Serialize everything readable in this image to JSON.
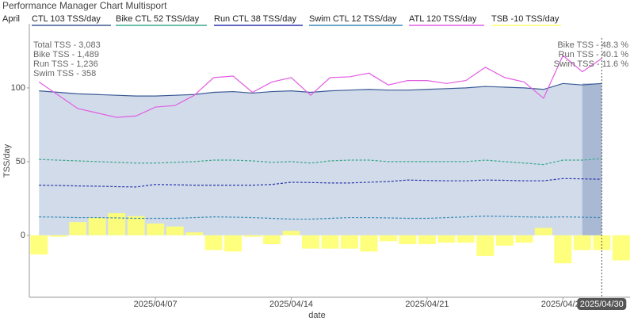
{
  "chart_data": {
    "type": "line",
    "title": "Performance Manager Chart Multisport",
    "legend_title": "April",
    "x_label": "date",
    "y_label": "TSS/day",
    "x": [
      "2025-04-01",
      "2025-04-02",
      "2025-04-03",
      "2025-04-04",
      "2025-04-05",
      "2025-04-06",
      "2025-04-07",
      "2025-04-08",
      "2025-04-09",
      "2025-04-10",
      "2025-04-11",
      "2025-04-12",
      "2025-04-13",
      "2025-04-14",
      "2025-04-15",
      "2025-04-16",
      "2025-04-17",
      "2025-04-18",
      "2025-04-19",
      "2025-04-20",
      "2025-04-21",
      "2025-04-22",
      "2025-04-23",
      "2025-04-24",
      "2025-04-25",
      "2025-04-26",
      "2025-04-27",
      "2025-04-28",
      "2025-04-29",
      "2025-04-30"
    ],
    "series": [
      {
        "name": "CTL  103 TSS/day",
        "color": "#3b5a96",
        "fill": "#d1dbe9",
        "dash": false,
        "values": [
          98,
          97,
          96,
          95.5,
          95,
          94.5,
          94.5,
          95,
          95.5,
          97,
          97.5,
          96.5,
          97.5,
          98,
          97,
          98,
          98.5,
          99,
          98.5,
          98.5,
          99,
          99.5,
          100,
          101,
          100.5,
          100,
          99,
          103,
          102,
          103
        ]
      },
      {
        "name": "Bike CTL  52 TSS/day",
        "color": "#3aa88c",
        "dash": true,
        "values": [
          51.5,
          51,
          50.5,
          50,
          49.5,
          49,
          49,
          49.5,
          50,
          51,
          51,
          50.5,
          49.5,
          50,
          49,
          50.5,
          51,
          51,
          50,
          50,
          50,
          50,
          50,
          51,
          50,
          49,
          48,
          51,
          51,
          52
        ]
      },
      {
        "name": "Run CTL  38 TSS/day",
        "color": "#2b37ae",
        "dash": true,
        "values": [
          34,
          33.8,
          33.5,
          33.3,
          33,
          32.8,
          34.5,
          34.3,
          34,
          34,
          34,
          34,
          34.5,
          36,
          35.8,
          35.5,
          35.5,
          36,
          36.5,
          37.5,
          37.2,
          37,
          37,
          37.5,
          37.3,
          37,
          37,
          38.5,
          38.3,
          38
        ]
      },
      {
        "name": "Swim CTL  12 TSS/day",
        "color": "#3a8ab8",
        "dash": true,
        "values": [
          12.5,
          12.3,
          12,
          12,
          11.8,
          11.5,
          11.5,
          11.5,
          12,
          12.5,
          12.3,
          12,
          11.5,
          11,
          11,
          11.5,
          12,
          12,
          11.8,
          11.5,
          11.5,
          12,
          12.5,
          13,
          12.8,
          12.5,
          12.3,
          12.5,
          12.3,
          12
        ]
      },
      {
        "name": "ATL  120 TSS/day",
        "color": "#e35de3",
        "dash": false,
        "values": [
          104,
          95,
          86,
          83,
          80,
          81,
          87,
          88,
          95,
          107,
          108,
          97,
          104,
          107,
          95,
          107,
          107.5,
          110,
          102,
          105,
          105,
          103,
          105,
          114,
          107,
          104,
          93,
          122,
          111,
          120
        ]
      },
      {
        "name": "TSB  -10 TSS/day",
        "color": "#ffff70",
        "type": "bar",
        "x": [
          "2025-04-01",
          "2025-04-02",
          "2025-04-03",
          "2025-04-04",
          "2025-04-05",
          "2025-04-06",
          "2025-04-07",
          "2025-04-08",
          "2025-04-09",
          "2025-04-10",
          "2025-04-11",
          "2025-04-12",
          "2025-04-13",
          "2025-04-14",
          "2025-04-15",
          "2025-04-16",
          "2025-04-17",
          "2025-04-18",
          "2025-04-19",
          "2025-04-20",
          "2025-04-21",
          "2025-04-22",
          "2025-04-23",
          "2025-04-24",
          "2025-04-25",
          "2025-04-26",
          "2025-04-27",
          "2025-04-28",
          "2025-04-29",
          "2025-04-30",
          "2025-05-01"
        ],
        "values": [
          -13,
          -1,
          9,
          12,
          15,
          13,
          8,
          6,
          2,
          -10,
          -11,
          -1,
          -6,
          3,
          -9,
          -9,
          -9,
          -11,
          -4,
          -6,
          -6,
          -5,
          -5,
          -14,
          -7,
          -5,
          5,
          -19,
          -10,
          -10,
          -17
        ]
      }
    ],
    "xlim": [
      "2025-03-31T12:00",
      "2025-05-01T11:00"
    ],
    "xticks": [
      {
        "value": "2025-04-07",
        "label": "2025/04/07"
      },
      {
        "value": "2025-04-14",
        "label": "2025/04/14"
      },
      {
        "value": "2025-04-21",
        "label": "2025/04/21"
      },
      {
        "value": "2025-04-28",
        "label": "2025/04/28"
      }
    ],
    "ylim": [
      -42,
      143.5
    ],
    "yticks": [
      0,
      50,
      100
    ],
    "grid": false,
    "hover": {
      "x": "2025-04-30",
      "label": "2025/04/30"
    },
    "annotations_left": [
      "Total TSS - 3,083",
      "Bike TSS - 1,489",
      "Run TSS - 1,236",
      "Swim TSS - 358"
    ],
    "annotations_right": [
      "Bike TSS - 48.3 %",
      "Run TSS - 40.1 %",
      "Swim TSS - 11.6 %"
    ]
  }
}
